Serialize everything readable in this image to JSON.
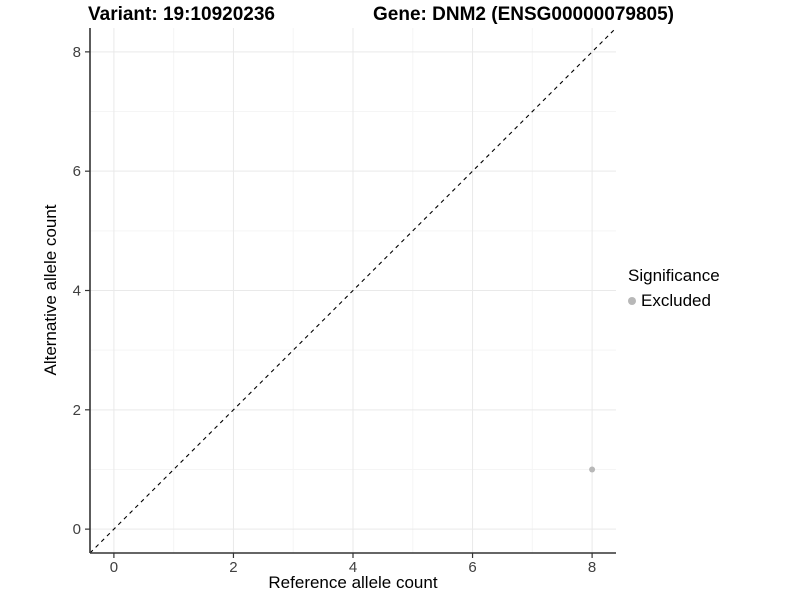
{
  "titles": {
    "variant": "Variant: 19:10920236",
    "gene": "Gene: DNM2 (ENSG00000079805)"
  },
  "chart_data": {
    "type": "scatter",
    "xlabel": "Reference allele count",
    "ylabel": "Alternative allele count",
    "xlim": [
      -0.4,
      8.4
    ],
    "ylim": [
      -0.4,
      8.4
    ],
    "x_ticks": {
      "values": [
        0,
        2,
        4,
        6,
        8
      ],
      "labels": [
        "0",
        "2",
        "4",
        "6",
        "8"
      ]
    },
    "y_ticks": {
      "values": [
        0,
        2,
        4,
        6,
        8
      ],
      "labels": [
        "0",
        "2",
        "4",
        "6",
        "8"
      ]
    },
    "x_minor": [
      1,
      3,
      5,
      7
    ],
    "y_minor": [
      1,
      3,
      5,
      7
    ],
    "grid": true,
    "identity_line": {
      "slope": 1,
      "intercept": 0,
      "style": "dashed",
      "color": "#000000"
    },
    "points": [
      {
        "x": 8,
        "y": 1,
        "series": "Excluded"
      }
    ],
    "legend": {
      "position": "right",
      "title": "Significance",
      "items": [
        {
          "label": "Excluded",
          "color": "#b8b8b8"
        }
      ]
    },
    "colors": {
      "point": "#b8b8b8",
      "grid_major": "#e9e9e9",
      "grid_minor": "#f5f5f5",
      "axis": "#333333",
      "tick_label": "#404040",
      "background": "#ffffff"
    }
  }
}
